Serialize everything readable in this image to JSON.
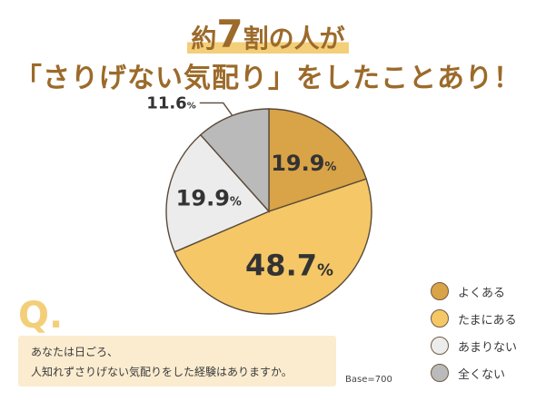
{
  "headline": {
    "line1_pre": "約",
    "line1_big": "7",
    "line1_post": "割の人が",
    "line2": "「さりげない気配り」をしたことあり！"
  },
  "chart_data": {
    "type": "pie",
    "slices": [
      {
        "label": "よくある",
        "value": 19.9,
        "value_text": "19.9%",
        "color": "#d9a347"
      },
      {
        "label": "たまにある",
        "value": 48.7,
        "value_text": "48.7%",
        "color": "#f5c766"
      },
      {
        "label": "あまりない",
        "value": 19.9,
        "value_text": "19.9%",
        "color": "#ececec"
      },
      {
        "label": "全くない",
        "value": 11.6,
        "value_text": "11.6%",
        "color": "#bababa"
      }
    ],
    "start": "12 o'clock",
    "direction": "clockwise",
    "legend_position": "bottom-right"
  },
  "question": {
    "mark": "Q.",
    "line1": "あなたは日ごろ、",
    "line2": "人知れずさりげない気配りをした経験はありますか。"
  },
  "base": "Base=700"
}
